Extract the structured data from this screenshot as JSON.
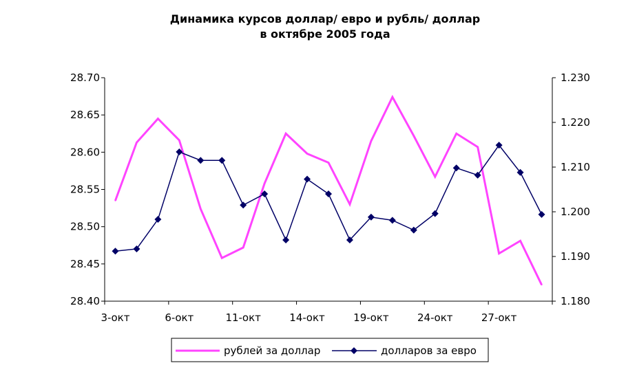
{
  "chart_data": {
    "type": "line",
    "title_line1": "Динамика курсов доллар/ евро и рубль/ доллар",
    "title_line2": "в октябре 2005 года",
    "x_tick_labels": [
      "3-окт",
      "6-окт",
      "11-окт",
      "14-окт",
      "19-окт",
      "24-окт",
      "27-окт"
    ],
    "categories_count": 21,
    "y_left": {
      "min": 28.4,
      "max": 28.7,
      "step": 0.05,
      "tick_labels": [
        "28.40",
        "28.45",
        "28.50",
        "28.55",
        "28.60",
        "28.65",
        "28.70"
      ]
    },
    "y_right": {
      "min": 1.18,
      "max": 1.23,
      "step": 0.01,
      "tick_labels": [
        "1.180",
        "1.190",
        "1.200",
        "1.210",
        "1.220",
        "1.230"
      ]
    },
    "grid": false,
    "legend_position": "bottom",
    "series": [
      {
        "name": "рублей за доллар",
        "axis": "left",
        "color": "#ff44ff",
        "marker": "none",
        "values": [
          28.535,
          28.613,
          28.645,
          28.616,
          28.524,
          28.458,
          28.472,
          28.558,
          28.625,
          28.598,
          28.586,
          28.53,
          28.615,
          28.674,
          28.622,
          28.567,
          28.625,
          28.607,
          28.464,
          28.481,
          28.422
        ]
      },
      {
        "name": "долларов за евро",
        "axis": "right",
        "color": "#000066",
        "marker": "diamond",
        "values": [
          1.1912,
          1.1917,
          1.1983,
          1.2134,
          1.2115,
          1.2115,
          1.2015,
          1.204,
          1.1937,
          1.2073,
          1.204,
          1.1937,
          1.1988,
          1.1981,
          1.1959,
          1.1996,
          1.2098,
          1.2082,
          1.2149,
          1.2088,
          1.1994
        ]
      }
    ]
  }
}
